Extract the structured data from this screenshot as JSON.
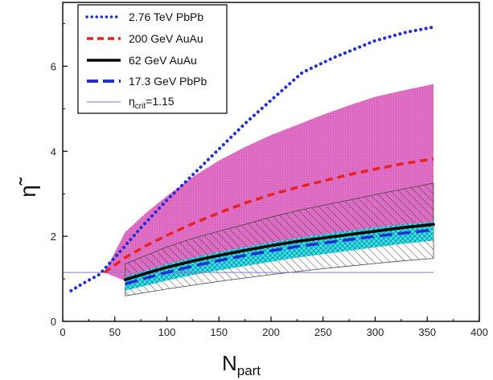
{
  "chart_data": {
    "type": "line",
    "title": "",
    "xlabel": "N",
    "xlabel_sub": "part",
    "ylabel": "η̃",
    "xlim": [
      0,
      400
    ],
    "ylim": [
      0,
      7.5
    ],
    "xticks": [
      "0",
      "50",
      "100",
      "150",
      "200",
      "250",
      "300",
      "350",
      "400"
    ],
    "yticks": [
      "0",
      "2",
      "4",
      "6"
    ],
    "legend_position": "top-left",
    "series": [
      {
        "name": "2.76 TeV PbPb",
        "color": "#1f2fd4",
        "style": "dotted",
        "x": [
          8,
          20,
          35,
          50,
          75,
          100,
          125,
          150,
          175,
          200,
          230,
          260,
          300,
          330,
          356
        ],
        "y": [
          0.72,
          0.9,
          1.1,
          1.5,
          2.2,
          2.85,
          3.45,
          4.05,
          4.65,
          5.2,
          5.85,
          6.2,
          6.6,
          6.8,
          6.92
        ]
      },
      {
        "name": "200 GeV AuAu",
        "color": "#e8201e",
        "style": "dashed",
        "x": [
          40,
          60,
          80,
          100,
          125,
          150,
          175,
          200,
          225,
          250,
          275,
          300,
          325,
          356
        ],
        "y": [
          1.15,
          1.5,
          1.78,
          2.02,
          2.3,
          2.55,
          2.78,
          2.98,
          3.15,
          3.3,
          3.45,
          3.58,
          3.7,
          3.82
        ]
      },
      {
        "name": "62 GeV AuAu",
        "color": "#000000",
        "style": "solid",
        "x": [
          60,
          80,
          100,
          125,
          150,
          175,
          200,
          225,
          250,
          275,
          300,
          325,
          356
        ],
        "y": [
          0.98,
          1.13,
          1.27,
          1.42,
          1.55,
          1.67,
          1.78,
          1.88,
          1.96,
          2.04,
          2.12,
          2.2,
          2.28
        ]
      },
      {
        "name": "17.3 GeV PbPb",
        "color": "#1f2fd4",
        "style": "dashed",
        "x": [
          60,
          80,
          100,
          125,
          150,
          175,
          200,
          225,
          250,
          275,
          300,
          325,
          356
        ],
        "y": [
          0.88,
          1.02,
          1.15,
          1.3,
          1.43,
          1.55,
          1.66,
          1.76,
          1.84,
          1.92,
          2.0,
          2.07,
          2.15
        ]
      },
      {
        "name": "η",
        "name_sub": "crit",
        "name_suffix": "=1.15",
        "color": "#7e7ec8",
        "style": "thin",
        "x": [
          0,
          356
        ],
        "y": [
          1.15,
          1.15
        ]
      }
    ],
    "bands": [
      {
        "name": "2.76 TeV PbPb band",
        "color": "#e060bf",
        "x": [
          40,
          60,
          80,
          100,
          125,
          150,
          175,
          200,
          225,
          250,
          275,
          300,
          325,
          356
        ],
        "upper": [
          1.15,
          2.1,
          2.55,
          2.95,
          3.4,
          3.78,
          4.1,
          4.38,
          4.62,
          4.86,
          5.08,
          5.28,
          5.42,
          5.58
        ],
        "lower": [
          1.15,
          0.95,
          1.12,
          1.3,
          1.48,
          1.62,
          1.74,
          1.84,
          1.92,
          2.0,
          2.06,
          2.12,
          2.18,
          2.25
        ]
      },
      {
        "name": "200 GeV AuAu band",
        "color": "#555555",
        "x": [
          60,
          80,
          100,
          125,
          150,
          175,
          200,
          225,
          250,
          275,
          300,
          325,
          356
        ],
        "upper": [
          1.35,
          1.55,
          1.75,
          1.95,
          2.12,
          2.28,
          2.45,
          2.6,
          2.73,
          2.85,
          2.98,
          3.1,
          3.25
        ],
        "lower": [
          0.6,
          0.68,
          0.76,
          0.85,
          0.94,
          1.02,
          1.1,
          1.17,
          1.24,
          1.3,
          1.36,
          1.42,
          1.48
        ]
      },
      {
        "name": "62 GeV AuAu band",
        "color": "#18e0e8",
        "x": [
          60,
          80,
          100,
          125,
          150,
          175,
          200,
          225,
          250,
          275,
          300,
          325,
          356
        ],
        "upper": [
          1.05,
          1.2,
          1.35,
          1.5,
          1.63,
          1.75,
          1.86,
          1.96,
          2.05,
          2.13,
          2.21,
          2.28,
          2.34
        ],
        "lower": [
          0.72,
          0.84,
          0.96,
          1.09,
          1.2,
          1.3,
          1.4,
          1.5,
          1.58,
          1.66,
          1.74,
          1.82,
          1.9
        ]
      }
    ]
  }
}
